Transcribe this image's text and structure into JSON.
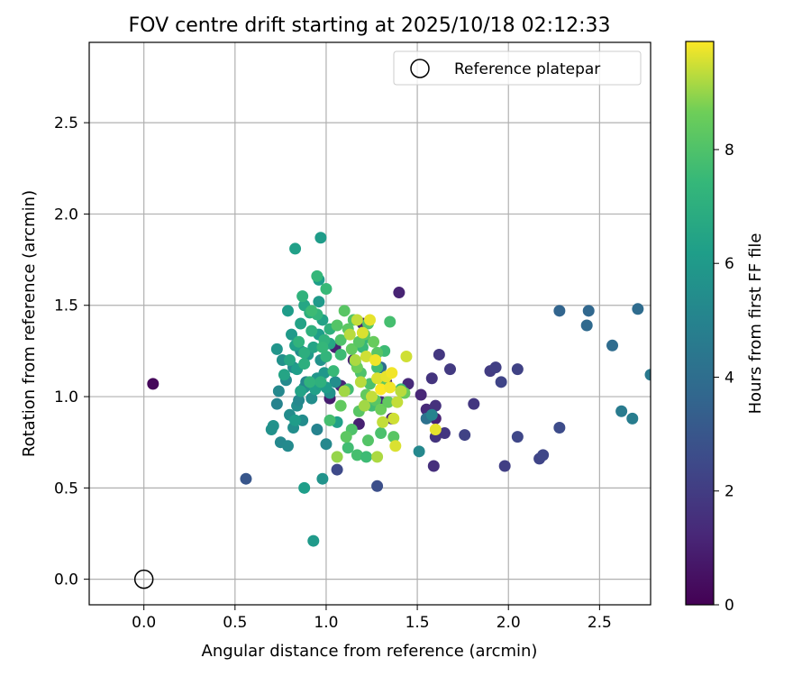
{
  "chart_data": {
    "type": "scatter",
    "title": "FOV centre drift starting at 2025/10/18 02:12:33",
    "xlabel": "Angular distance from reference (arcmin)",
    "ylabel": "Rotation from reference (arcmin)",
    "xlim": [
      -0.3,
      2.78
    ],
    "ylim": [
      -0.14,
      2.94
    ],
    "xticks": [
      0.0,
      0.5,
      1.0,
      1.5,
      2.0,
      2.5
    ],
    "xtick_labels": [
      "0.0",
      "0.5",
      "1.0",
      "1.5",
      "2.0",
      "2.5"
    ],
    "yticks": [
      0.0,
      0.5,
      1.0,
      1.5,
      2.0,
      2.5
    ],
    "ytick_labels": [
      "0.0",
      "0.5",
      "1.0",
      "1.5",
      "2.0",
      "2.5"
    ],
    "grid": true,
    "legend": {
      "position": "upper-right",
      "entries": [
        "Reference platepar"
      ]
    },
    "reference_point": {
      "x": 0.0,
      "y": 0.0,
      "label": "Reference platepar"
    },
    "colorbar": {
      "label": "Hours from first FF file",
      "min": 0,
      "max": 9.9,
      "ticks": [
        0,
        2,
        4,
        6,
        8
      ],
      "tick_labels": [
        "0",
        "2",
        "4",
        "6",
        "8"
      ],
      "colormap": "viridis"
    },
    "points": [
      [
        0.05,
        1.07,
        0.2
      ],
      [
        1.2,
        1.4,
        1.2
      ],
      [
        1.4,
        1.57,
        1.1
      ],
      [
        1.05,
        1.27,
        1.0
      ],
      [
        1.02,
        0.99,
        0.9
      ],
      [
        1.08,
        1.06,
        1.2
      ],
      [
        1.18,
        0.85,
        1.0
      ],
      [
        1.6,
        0.88,
        1.1
      ],
      [
        1.55,
        0.93,
        1.3
      ],
      [
        1.52,
        1.01,
        1.2
      ],
      [
        1.45,
        1.07,
        1.3
      ],
      [
        1.3,
        0.97,
        1.4
      ],
      [
        1.33,
        1.08,
        1.2
      ],
      [
        1.36,
        0.88,
        1.0
      ],
      [
        1.15,
        1.2,
        1.1
      ],
      [
        1.58,
        1.1,
        1.7
      ],
      [
        1.62,
        1.23,
        1.8
      ],
      [
        1.68,
        1.15,
        1.9
      ],
      [
        1.6,
        0.95,
        1.6
      ],
      [
        1.65,
        0.8,
        1.8
      ],
      [
        1.6,
        0.78,
        1.7
      ],
      [
        1.59,
        0.62,
        1.5
      ],
      [
        1.81,
        0.96,
        1.8
      ],
      [
        1.76,
        0.79,
        2.2
      ],
      [
        1.9,
        1.14,
        2.0
      ],
      [
        1.93,
        1.16,
        2.1
      ],
      [
        1.96,
        1.08,
        2.3
      ],
      [
        1.98,
        0.62,
        2.1
      ],
      [
        2.05,
        1.15,
        2.2
      ],
      [
        2.05,
        0.78,
        2.4
      ],
      [
        2.17,
        0.66,
        2.3
      ],
      [
        2.19,
        0.68,
        2.4
      ],
      [
        2.28,
        0.83,
        2.6
      ],
      [
        1.06,
        0.6,
        2.5
      ],
      [
        1.28,
        0.51,
        2.7
      ],
      [
        0.56,
        0.55,
        3.0
      ],
      [
        2.28,
        1.47,
        3.6
      ],
      [
        2.43,
        1.39,
        3.8
      ],
      [
        2.44,
        1.47,
        3.7
      ],
      [
        2.57,
        1.28,
        3.9
      ],
      [
        2.62,
        0.92,
        4.6
      ],
      [
        2.68,
        0.88,
        4.7
      ],
      [
        2.71,
        1.48,
        3.9
      ],
      [
        2.78,
        1.12,
        4.5
      ],
      [
        1.3,
        1.16,
        4.0
      ],
      [
        1.55,
        0.88,
        4.2
      ],
      [
        1.58,
        0.9,
        5.0
      ],
      [
        1.51,
        0.7,
        5.2
      ],
      [
        0.78,
        1.09,
        5.3
      ],
      [
        0.76,
        1.2,
        5.6
      ],
      [
        0.74,
        1.03,
        5.2
      ],
      [
        0.73,
        0.96,
        5.0
      ],
      [
        0.8,
        0.9,
        5.4
      ],
      [
        0.84,
        0.95,
        5.5
      ],
      [
        0.82,
        1.16,
        5.3
      ],
      [
        0.86,
        1.25,
        5.4
      ],
      [
        0.88,
        1.05,
        5.6
      ],
      [
        0.92,
        0.99,
        5.5
      ],
      [
        0.95,
        1.1,
        5.8
      ],
      [
        0.97,
        1.2,
        5.7
      ],
      [
        0.99,
        1.13,
        5.9
      ],
      [
        1.02,
        1.02,
        5.6
      ],
      [
        1.05,
        1.08,
        5.5
      ],
      [
        0.73,
        1.26,
        5.8
      ],
      [
        0.71,
        0.84,
        5.7
      ],
      [
        0.7,
        0.82,
        5.6
      ],
      [
        0.75,
        0.75,
        5.2
      ],
      [
        0.79,
        0.73,
        5.3
      ],
      [
        0.82,
        0.83,
        5.5
      ],
      [
        0.85,
        0.98,
        5.2
      ],
      [
        0.87,
        0.87,
        5.4
      ],
      [
        0.89,
        1.08,
        5.1
      ],
      [
        0.95,
        0.82,
        5.0
      ],
      [
        1.0,
        0.74,
        5.2
      ],
      [
        0.98,
        0.55,
        5.7
      ],
      [
        0.81,
        1.34,
        6.0
      ],
      [
        0.79,
        1.47,
        6.1
      ],
      [
        0.83,
        1.28,
        6.3
      ],
      [
        0.84,
        1.15,
        6.2
      ],
      [
        0.86,
        1.4,
        6.4
      ],
      [
        0.88,
        1.5,
        6.6
      ],
      [
        0.9,
        1.23,
        6.0
      ],
      [
        0.93,
        1.27,
        6.5
      ],
      [
        0.94,
        1.04,
        6.3
      ],
      [
        0.96,
        1.34,
        6.2
      ],
      [
        0.98,
        1.42,
        6.4
      ],
      [
        1.0,
        1.05,
        6.1
      ],
      [
        1.02,
        1.29,
        6.6
      ],
      [
        0.83,
        1.81,
        6.3
      ],
      [
        0.97,
        1.87,
        6.1
      ],
      [
        0.96,
        1.64,
        6.2
      ],
      [
        0.96,
        1.52,
        6.0
      ],
      [
        0.77,
        1.12,
        6.5
      ],
      [
        0.8,
        1.2,
        6.6
      ],
      [
        0.86,
        1.03,
        6.4
      ],
      [
        0.83,
        0.87,
        6.1
      ],
      [
        0.88,
        0.5,
        6.2
      ],
      [
        0.93,
        0.21,
        6.0
      ],
      [
        1.06,
        0.86,
        6.3
      ],
      [
        0.87,
        1.55,
        7.2
      ],
      [
        0.91,
        1.46,
        7.0
      ],
      [
        0.92,
        1.36,
        7.1
      ],
      [
        0.95,
        1.45,
        7.3
      ],
      [
        0.95,
        1.66,
        7.4
      ],
      [
        0.99,
        1.31,
        7.2
      ],
      [
        1.0,
        1.59,
        7.5
      ],
      [
        1.02,
        1.37,
        7.1
      ],
      [
        0.88,
        1.18,
        7.0
      ],
      [
        0.91,
        1.08,
        7.2
      ],
      [
        0.97,
        1.08,
        7.1
      ],
      [
        1.0,
        1.22,
        7.3
      ],
      [
        1.04,
        1.14,
        7.5
      ],
      [
        0.92,
        1.47,
        7.6
      ],
      [
        0.85,
        1.3,
        7.2
      ],
      [
        0.88,
        1.24,
        7.0
      ],
      [
        0.98,
        1.27,
        7.4
      ],
      [
        1.02,
        0.87,
        7.8
      ],
      [
        1.08,
        1.23,
        7.6
      ],
      [
        1.12,
        1.04,
        7.7
      ],
      [
        1.16,
        1.19,
        7.8
      ],
      [
        1.2,
        1.27,
        7.5
      ],
      [
        1.24,
        1.07,
        7.9
      ],
      [
        1.28,
        1.16,
        7.7
      ],
      [
        1.32,
        1.25,
        7.6
      ],
      [
        1.35,
        1.41,
        7.8
      ],
      [
        1.41,
        1.04,
        7.5
      ],
      [
        1.12,
        0.72,
        7.7
      ],
      [
        1.17,
        0.68,
        7.8
      ],
      [
        1.22,
        0.67,
        7.6
      ],
      [
        1.3,
        0.8,
        7.9
      ],
      [
        1.25,
        0.95,
        7.7
      ],
      [
        1.21,
        1.32,
        7.4
      ],
      [
        1.06,
        1.39,
        8.1
      ],
      [
        1.08,
        1.31,
        8.0
      ],
      [
        1.1,
        1.47,
        8.2
      ],
      [
        1.12,
        1.37,
        8.3
      ],
      [
        1.14,
        1.26,
        8.4
      ],
      [
        1.15,
        1.42,
        8.1
      ],
      [
        1.18,
        1.3,
        8.2
      ],
      [
        1.19,
        1.13,
        8.0
      ],
      [
        1.21,
        1.34,
        8.3
      ],
      [
        1.22,
        1.01,
        8.4
      ],
      [
        1.23,
        1.4,
        8.1
      ],
      [
        1.26,
        1.3,
        8.5
      ],
      [
        1.27,
        0.98,
        8.2
      ],
      [
        1.3,
        0.93,
        8.6
      ],
      [
        1.32,
        1.06,
        8.3
      ],
      [
        1.34,
        0.97,
        8.4
      ],
      [
        1.37,
        0.78,
        8.2
      ],
      [
        1.43,
        1.02,
        8.5
      ],
      [
        1.14,
        0.82,
        8.0
      ],
      [
        1.18,
        0.92,
        8.2
      ],
      [
        1.23,
        0.76,
        8.1
      ],
      [
        1.11,
        0.78,
        8.3
      ],
      [
        1.08,
        0.95,
        8.4
      ],
      [
        1.17,
        1.16,
        8.6
      ],
      [
        1.28,
        1.24,
        8.2
      ],
      [
        1.06,
        0.67,
        9.0
      ],
      [
        1.1,
        1.03,
        9.1
      ],
      [
        1.13,
        1.34,
        9.3
      ],
      [
        1.16,
        1.2,
        9.2
      ],
      [
        1.17,
        1.42,
        9.4
      ],
      [
        1.19,
        1.08,
        9.3
      ],
      [
        1.2,
        1.35,
        9.6
      ],
      [
        1.22,
        1.22,
        9.5
      ],
      [
        1.24,
        1.42,
        9.7
      ],
      [
        1.25,
        1.0,
        9.4
      ],
      [
        1.27,
        1.2,
        9.8
      ],
      [
        1.28,
        1.1,
        9.6
      ],
      [
        1.3,
        1.04,
        9.9
      ],
      [
        1.31,
        0.86,
        9.4
      ],
      [
        1.33,
        1.11,
        9.7
      ],
      [
        1.35,
        1.05,
        9.8
      ],
      [
        1.37,
        0.88,
        9.5
      ],
      [
        1.38,
        0.73,
        9.6
      ],
      [
        1.39,
        0.97,
        9.4
      ],
      [
        1.41,
        1.03,
        9.3
      ],
      [
        1.44,
        1.22,
        9.5
      ],
      [
        1.6,
        0.82,
        9.7
      ],
      [
        1.28,
        0.67,
        9.2
      ],
      [
        1.36,
        1.13,
        9.8
      ],
      [
        1.21,
        0.95,
        9.1
      ]
    ]
  }
}
